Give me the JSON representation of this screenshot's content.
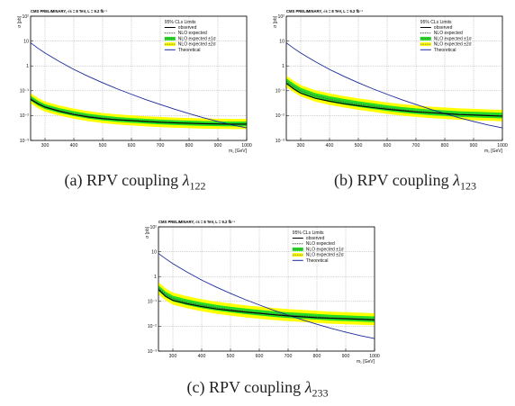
{
  "figure": {
    "captions": [
      {
        "prefix": "(a) RPV coupling ",
        "symbol": "λ",
        "sub": "122"
      },
      {
        "prefix": "(b) RPV coupling ",
        "symbol": "λ",
        "sub": "123"
      },
      {
        "prefix": "(c) RPV coupling ",
        "symbol": "λ",
        "sub": "233"
      }
    ]
  },
  "chart_data": [
    {
      "type": "line",
      "header": "CMS PRELIMINARY, √s = 8 TeV, L = 9.2 fb⁻¹",
      "xlabel": "m₁ [GeV]",
      "ylabel": "σ [pb]",
      "xlim": [
        250,
        1000
      ],
      "ylim": [
        0.001,
        100
      ],
      "yscale": "log",
      "x_ticks": [
        "300",
        "400",
        "500",
        "600",
        "700",
        "800",
        "900",
        "1000"
      ],
      "y_ticks": [
        "10⁻³",
        "10⁻²",
        "10⁻¹",
        "1",
        "10",
        "10²"
      ],
      "grid": true,
      "legend_position": "top-right",
      "legend_title": "95% CLs Limits",
      "legend": [
        "observed",
        "NLO expected",
        "NLO expected ±1σ",
        "NLO expected ±2σ",
        "Theoretical"
      ],
      "colors": {
        "observed": "#000000",
        "theory": "#1a2a9a",
        "band1": "#22dd22",
        "band2": "#ffff00",
        "expected": "#555555"
      },
      "x": [
        250,
        275,
        300,
        350,
        400,
        450,
        500,
        550,
        600,
        650,
        700,
        750,
        800,
        850,
        900,
        950,
        1000
      ],
      "series": [
        {
          "name": "observed",
          "values": [
            0.045,
            0.03,
            0.022,
            0.015,
            0.011,
            0.0088,
            0.0075,
            0.0068,
            0.0063,
            0.0058,
            0.0054,
            0.0051,
            0.0049,
            0.0047,
            0.0046,
            0.0045,
            0.0045
          ]
        },
        {
          "name": "NLO expected",
          "values": [
            0.05,
            0.032,
            0.023,
            0.016,
            0.012,
            0.0095,
            0.008,
            0.007,
            0.0064,
            0.0059,
            0.0055,
            0.0052,
            0.005,
            0.0048,
            0.0047,
            0.0046,
            0.0046
          ]
        },
        {
          "name": "Theoretical",
          "values": [
            8.5,
            5.2,
            3.3,
            1.5,
            0.72,
            0.38,
            0.21,
            0.12,
            0.072,
            0.044,
            0.028,
            0.018,
            0.012,
            0.0082,
            0.0058,
            0.0042,
            0.0032
          ]
        }
      ],
      "band1_factor": 1.25,
      "band2_factor": 1.6
    },
    {
      "type": "line",
      "header": "CMS PRELIMINARY, √s = 8 TeV, L = 9.2 fb⁻¹",
      "xlabel": "m₁ [GeV]",
      "ylabel": "σ [pb]",
      "xlim": [
        250,
        1000
      ],
      "ylim": [
        0.001,
        100
      ],
      "yscale": "log",
      "x_ticks": [
        "300",
        "400",
        "500",
        "600",
        "700",
        "800",
        "900",
        "1000"
      ],
      "y_ticks": [
        "10⁻³",
        "10⁻²",
        "10⁻¹",
        "1",
        "10",
        "10²"
      ],
      "grid": true,
      "legend_position": "top-right",
      "legend_title": "95% CLs Limits",
      "legend": [
        "observed",
        "NLO expected",
        "NLO expected ±1σ",
        "NLO expected ±2σ",
        "Theoretical"
      ],
      "colors": {
        "observed": "#000000",
        "theory": "#1a2a9a",
        "band1": "#22dd22",
        "band2": "#ffff00",
        "expected": "#555555"
      },
      "x": [
        250,
        275,
        300,
        350,
        400,
        450,
        500,
        550,
        600,
        650,
        700,
        750,
        800,
        850,
        900,
        950,
        1000
      ],
      "series": [
        {
          "name": "observed",
          "values": [
            0.2,
            0.12,
            0.08,
            0.05,
            0.038,
            0.03,
            0.025,
            0.021,
            0.018,
            0.016,
            0.014,
            0.013,
            0.012,
            0.011,
            0.0105,
            0.01,
            0.0095
          ]
        },
        {
          "name": "NLO expected",
          "values": [
            0.24,
            0.15,
            0.1,
            0.062,
            0.046,
            0.036,
            0.029,
            0.024,
            0.02,
            0.017,
            0.015,
            0.0135,
            0.0125,
            0.0115,
            0.011,
            0.0105,
            0.01
          ]
        },
        {
          "name": "Theoretical",
          "values": [
            8.5,
            5.2,
            3.3,
            1.5,
            0.72,
            0.38,
            0.21,
            0.12,
            0.072,
            0.044,
            0.028,
            0.018,
            0.012,
            0.0082,
            0.0058,
            0.0042,
            0.0032
          ]
        }
      ],
      "band1_factor": 1.3,
      "band2_factor": 1.7
    },
    {
      "type": "line",
      "header": "CMS PRELIMINARY, √s = 8 TeV, L = 9.2 fb⁻¹",
      "xlabel": "m₁ [GeV]",
      "ylabel": "σ [pb]",
      "xlim": [
        250,
        1000
      ],
      "ylim": [
        0.001,
        100
      ],
      "yscale": "log",
      "x_ticks": [
        "300",
        "400",
        "500",
        "600",
        "700",
        "800",
        "900",
        "1000"
      ],
      "y_ticks": [
        "10⁻³",
        "10⁻²",
        "10⁻¹",
        "1",
        "10",
        "10²"
      ],
      "grid": true,
      "legend_position": "top-right",
      "legend_title": "95% CLs Limits",
      "legend": [
        "observed",
        "NLO expected",
        "NLO expected ±1σ",
        "NLO expected ±2σ",
        "Theoretical"
      ],
      "colors": {
        "observed": "#000000",
        "theory": "#1a2a9a",
        "band1": "#22dd22",
        "band2": "#ffff00",
        "expected": "#555555"
      },
      "x": [
        250,
        275,
        300,
        350,
        400,
        450,
        500,
        550,
        600,
        650,
        700,
        750,
        800,
        850,
        900,
        950,
        1000
      ],
      "series": [
        {
          "name": "observed",
          "values": [
            0.3,
            0.16,
            0.11,
            0.08,
            0.062,
            0.05,
            0.043,
            0.037,
            0.033,
            0.029,
            0.026,
            0.024,
            0.022,
            0.021,
            0.02,
            0.019,
            0.018
          ]
        },
        {
          "name": "NLO expected",
          "values": [
            0.34,
            0.19,
            0.13,
            0.092,
            0.07,
            0.056,
            0.047,
            0.04,
            0.035,
            0.031,
            0.028,
            0.026,
            0.024,
            0.022,
            0.021,
            0.02,
            0.019
          ]
        },
        {
          "name": "Theoretical",
          "values": [
            8.5,
            5.2,
            3.3,
            1.5,
            0.72,
            0.38,
            0.21,
            0.12,
            0.072,
            0.044,
            0.028,
            0.018,
            0.012,
            0.0082,
            0.0058,
            0.0042,
            0.0032
          ]
        }
      ],
      "band1_factor": 1.3,
      "band2_factor": 1.75
    }
  ]
}
